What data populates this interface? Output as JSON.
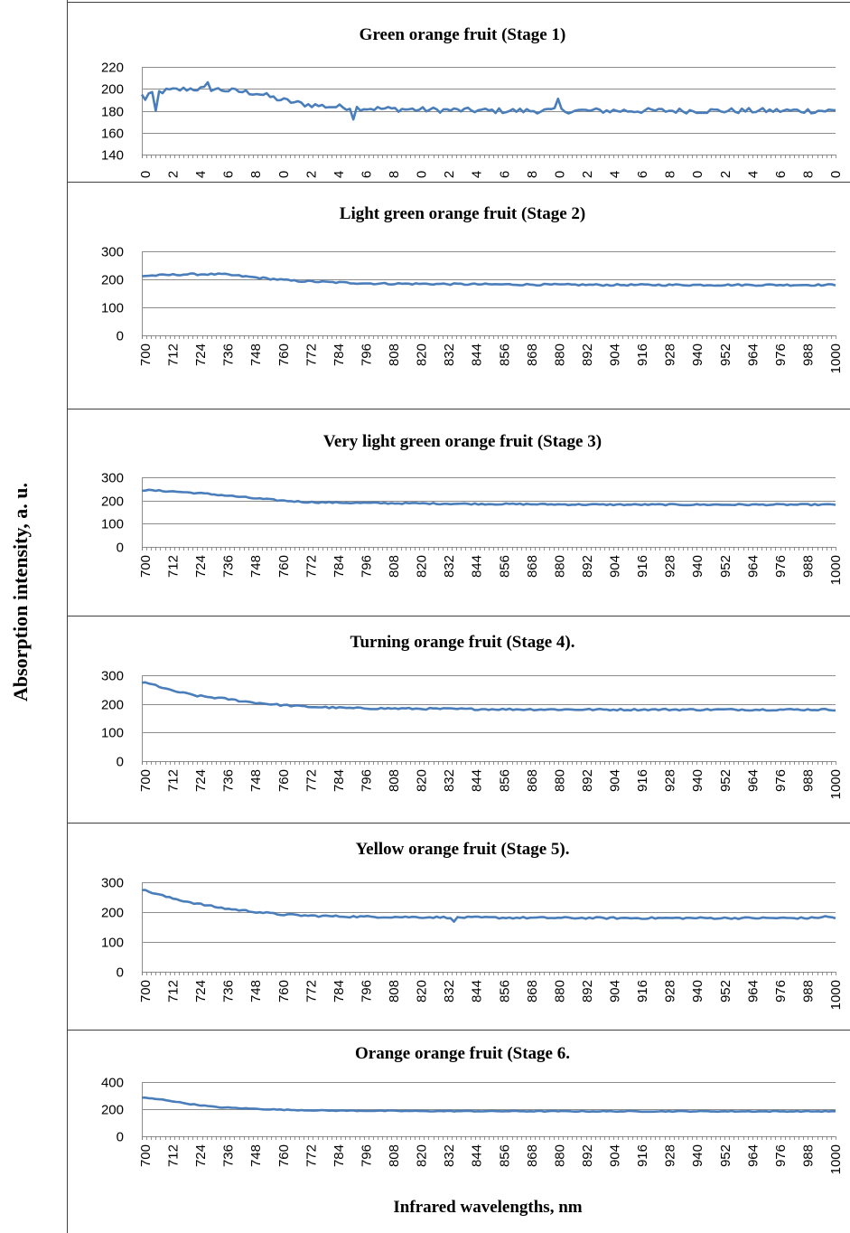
{
  "ylabel": "Absorption intensity, a. u.",
  "xlabel": "Infrared wavelengths, nm",
  "colors": {
    "series": "#4A7EBB",
    "grid": "#8C8C8C",
    "border": "#404040"
  },
  "chart_data": [
    {
      "type": "line",
      "title": "Green orange fruit (Stage 1)",
      "ylim": [
        140,
        220
      ],
      "yticks": [
        "140",
        "160",
        "180",
        "200",
        "220"
      ],
      "xtick_labels": [
        "0",
        "2",
        "4",
        "6",
        "8",
        "0",
        "2",
        "4",
        "6",
        "8",
        "0",
        "2",
        "4",
        "6",
        "8",
        "0",
        "2",
        "4",
        "6",
        "8",
        "0",
        "2",
        "4",
        "6",
        "8",
        "0"
      ],
      "x_range": [
        700,
        1000
      ],
      "keypoints": [
        [
          700,
          194
        ],
        [
          710,
          198
        ],
        [
          720,
          200
        ],
        [
          730,
          200
        ],
        [
          740,
          198
        ],
        [
          750,
          196
        ],
        [
          760,
          190
        ],
        [
          770,
          186
        ],
        [
          780,
          184
        ],
        [
          800,
          182
        ],
        [
          820,
          181
        ],
        [
          850,
          180
        ],
        [
          900,
          180
        ],
        [
          950,
          180
        ],
        [
          1000,
          180
        ]
      ],
      "spikes": [
        [
          701,
          190
        ],
        [
          704,
          197
        ],
        [
          706,
          180
        ],
        [
          728,
          206
        ],
        [
          792,
          172
        ],
        [
          880,
          191
        ]
      ],
      "noise": 2.5
    },
    {
      "type": "line",
      "title": "Light  green orange fruit (Stage 2)",
      "ylim": [
        0,
        300
      ],
      "yticks": [
        "0",
        "100",
        "200",
        "300"
      ],
      "xtick_labels": [
        "700",
        "712",
        "724",
        "736",
        "748",
        "760",
        "772",
        "784",
        "796",
        "808",
        "820",
        "832",
        "844",
        "856",
        "868",
        "880",
        "892",
        "904",
        "916",
        "928",
        "940",
        "952",
        "964",
        "976",
        "988",
        "1000"
      ],
      "x_range": [
        700,
        1000
      ],
      "keypoints": [
        [
          700,
          212
        ],
        [
          720,
          218
        ],
        [
          735,
          218
        ],
        [
          750,
          206
        ],
        [
          765,
          195
        ],
        [
          780,
          190
        ],
        [
          800,
          185
        ],
        [
          850,
          182
        ],
        [
          900,
          180
        ],
        [
          1000,
          180
        ]
      ],
      "spikes": [],
      "noise": 3
    },
    {
      "type": "line",
      "title": "Very light  green orange fruit (Stage 3)",
      "ylim": [
        0,
        300
      ],
      "yticks": [
        "0",
        "100",
        "200",
        "300"
      ],
      "xtick_labels": [
        "700",
        "712",
        "724",
        "736",
        "748",
        "760",
        "772",
        "784",
        "796",
        "808",
        "820",
        "832",
        "844",
        "856",
        "868",
        "880",
        "892",
        "904",
        "916",
        "928",
        "940",
        "952",
        "964",
        "976",
        "988",
        "1000"
      ],
      "x_range": [
        700,
        1000
      ],
      "keypoints": [
        [
          700,
          245
        ],
        [
          712,
          240
        ],
        [
          724,
          232
        ],
        [
          736,
          222
        ],
        [
          748,
          210
        ],
        [
          760,
          200
        ],
        [
          772,
          193
        ],
        [
          790,
          190
        ],
        [
          810,
          188
        ],
        [
          850,
          185
        ],
        [
          900,
          182
        ],
        [
          1000,
          182
        ]
      ],
      "spikes": [],
      "noise": 3
    },
    {
      "type": "line",
      "title": "Turning  orange fruit (Stage 4).",
      "ylim": [
        0,
        300
      ],
      "yticks": [
        "0",
        "100",
        "200",
        "300"
      ],
      "xtick_labels": [
        "700",
        "712",
        "724",
        "736",
        "748",
        "760",
        "772",
        "784",
        "796",
        "808",
        "820",
        "832",
        "844",
        "856",
        "868",
        "880",
        "892",
        "904",
        "916",
        "928",
        "940",
        "952",
        "964",
        "976",
        "988",
        "1000"
      ],
      "x_range": [
        700,
        1000
      ],
      "keypoints": [
        [
          700,
          275
        ],
        [
          706,
          265
        ],
        [
          712,
          248
        ],
        [
          724,
          228
        ],
        [
          736,
          218
        ],
        [
          748,
          205
        ],
        [
          760,
          196
        ],
        [
          772,
          190
        ],
        [
          790,
          185
        ],
        [
          820,
          183
        ],
        [
          860,
          181
        ],
        [
          900,
          180
        ],
        [
          1000,
          180
        ]
      ],
      "spikes": [],
      "noise": 3
    },
    {
      "type": "line",
      "title": "Yellow  orange fruit (Stage 5).",
      "ylim": [
        0,
        300
      ],
      "yticks": [
        "0",
        "100",
        "200",
        "300"
      ],
      "xtick_labels": [
        "700",
        "712",
        "724",
        "736",
        "748",
        "760",
        "772",
        "784",
        "796",
        "808",
        "820",
        "832",
        "844",
        "856",
        "868",
        "880",
        "892",
        "904",
        "916",
        "928",
        "940",
        "952",
        "964",
        "976",
        "988",
        "1000"
      ],
      "x_range": [
        700,
        1000
      ],
      "keypoints": [
        [
          700,
          275
        ],
        [
          706,
          262
        ],
        [
          712,
          248
        ],
        [
          724,
          228
        ],
        [
          736,
          212
        ],
        [
          748,
          202
        ],
        [
          760,
          192
        ],
        [
          772,
          188
        ],
        [
          790,
          185
        ],
        [
          820,
          183
        ],
        [
          860,
          181
        ],
        [
          900,
          180
        ],
        [
          990,
          180
        ],
        [
          996,
          185
        ],
        [
          1000,
          180
        ]
      ],
      "spikes": [
        [
          835,
          168
        ]
      ],
      "noise": 3
    },
    {
      "type": "line",
      "title": "Orange  orange fruit (Stage 6.",
      "ylim": [
        0,
        400
      ],
      "yticks": [
        "0",
        "200",
        "400"
      ],
      "xtick_labels": [
        "700",
        "712",
        "724",
        "736",
        "748",
        "760",
        "772",
        "784",
        "796",
        "808",
        "820",
        "832",
        "844",
        "856",
        "868",
        "880",
        "892",
        "904",
        "916",
        "928",
        "940",
        "952",
        "964",
        "976",
        "988",
        "1000"
      ],
      "x_range": [
        700,
        1000
      ],
      "keypoints": [
        [
          700,
          285
        ],
        [
          710,
          268
        ],
        [
          720,
          240
        ],
        [
          732,
          215
        ],
        [
          748,
          203
        ],
        [
          760,
          196
        ],
        [
          780,
          190
        ],
        [
          820,
          186
        ],
        [
          900,
          184
        ],
        [
          1000,
          184
        ]
      ],
      "spikes": [],
      "noise": 3
    }
  ]
}
